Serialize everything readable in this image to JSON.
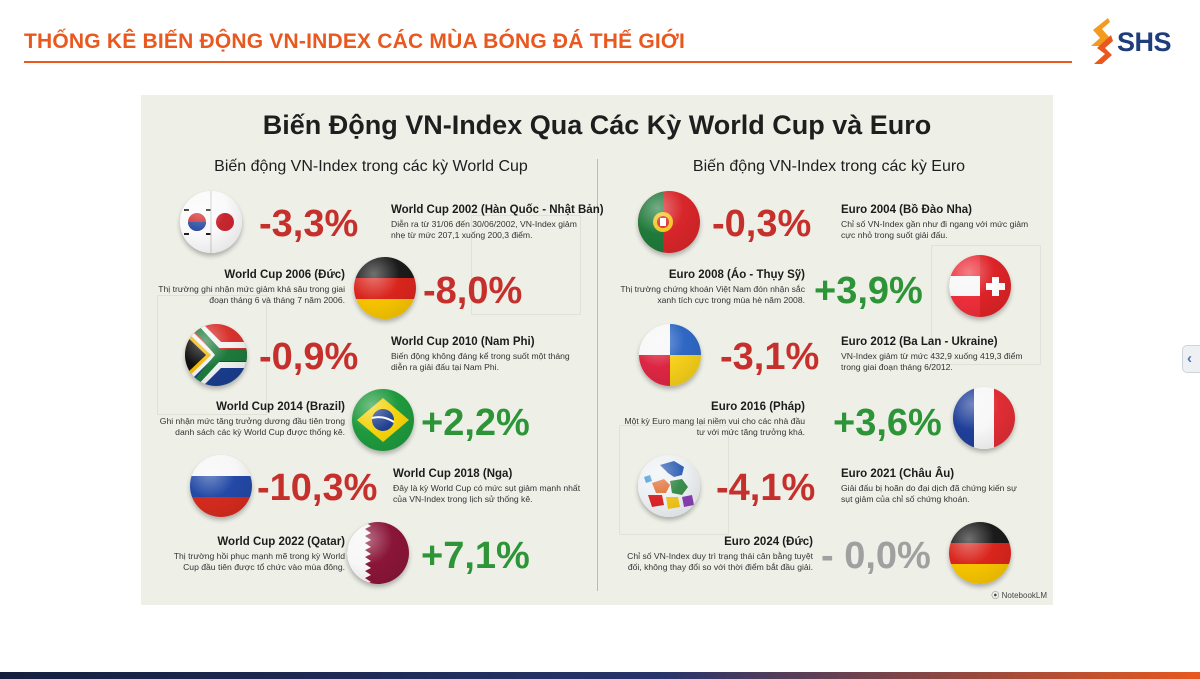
{
  "header": {
    "title": "THỐNG KÊ BIẾN ĐỘNG VN-INDEX CÁC MÙA BÓNG ĐÁ THẾ GIỚI",
    "logo_text": "SHS"
  },
  "colors": {
    "accent": "#e8581f",
    "brand": "#1f3d7a",
    "negative": "#c6302c",
    "positive": "#2e9438",
    "neutral": "#a0a0a0"
  },
  "infographic": {
    "title": "Biến Động VN-Index Qua Các Kỳ World Cup và Euro",
    "watermark": "NotebookLM",
    "world_cup": {
      "heading": "Biến động VN-Index trong các kỳ World Cup",
      "items": [
        {
          "flag": "south-korea-japan",
          "value": "-3,3%",
          "trend": "down",
          "title": "World Cup 2002 (Hàn Quốc - Nhật Bản)",
          "desc": "Diễn ra từ 31/06 đến 30/06/2002, VN-Index giảm nhẹ từ mức 207,1 xuống 200,3 điểm."
        },
        {
          "flag": "germany",
          "value": "-8,0%",
          "trend": "down",
          "title": "World Cup 2006 (Đức)",
          "desc": "Thị trường ghi nhận mức giảm khá sâu trong giai đoạn tháng 6 và tháng 7 năm 2006."
        },
        {
          "flag": "south-africa",
          "value": "-0,9%",
          "trend": "down",
          "title": "World Cup 2010 (Nam Phi)",
          "desc": "Biến động không đáng kể trong suốt một tháng diễn ra giải đấu tại Nam Phi."
        },
        {
          "flag": "brazil",
          "value": "+2,2%",
          "trend": "up",
          "title": "World Cup 2014 (Brazil)",
          "desc": "Ghi nhận mức tăng trưởng dương đầu tiên trong danh sách các kỳ World Cup được thống kê."
        },
        {
          "flag": "russia",
          "value": "-10,3%",
          "trend": "down",
          "title": "World Cup 2018 (Nga)",
          "desc": "Đây là kỳ World Cup có mức sụt giảm mạnh nhất của VN-Index trong lịch sử thống kê."
        },
        {
          "flag": "qatar",
          "value": "+7,1%",
          "trend": "up",
          "title": "World Cup 2022 (Qatar)",
          "desc": "Thị trường hồi phục mạnh mẽ trong kỳ World Cup đầu tiên được tổ chức vào mùa đông."
        }
      ]
    },
    "euro": {
      "heading": "Biến động VN-Index trong các kỳ Euro",
      "items": [
        {
          "flag": "portugal",
          "value": "-0,3%",
          "trend": "down",
          "title": "Euro 2004 (Bồ Đào Nha)",
          "desc": "Chỉ số VN-Index gần như đi ngang với mức giảm cực nhỏ trong suốt giải đấu."
        },
        {
          "flag": "austria-switzerland",
          "value": "+3,9%",
          "trend": "up",
          "title": "Euro 2008 (Áo - Thụy Sỹ)",
          "desc": "Thị trường chứng khoán Việt Nam đón nhận sắc xanh tích cực trong mùa hè năm 2008."
        },
        {
          "flag": "poland-ukraine",
          "value": "-3,1%",
          "trend": "down",
          "title": "Euro 2012 (Ba Lan - Ukraine)",
          "desc": "VN-Index giảm từ mức 432,9 xuống 419,3 điểm trong giai đoạn tháng 6/2012."
        },
        {
          "flag": "france",
          "value": "+3,6%",
          "trend": "up",
          "title": "Euro 2016 (Pháp)",
          "desc": "Một kỳ Euro mang lại niềm vui cho các nhà đầu tư với mức tăng trưởng khá."
        },
        {
          "flag": "europe-map",
          "value": "-4,1%",
          "trend": "down",
          "title": "Euro 2021 (Châu Âu)",
          "desc": "Giải đấu bị hoãn do đại dịch đã chứng kiến sự sụt giảm của chỉ số chứng khoán."
        },
        {
          "flag": "germany",
          "value": "- 0,0%",
          "trend": "flat",
          "title": "Euro 2024 (Đức)",
          "desc": "Chỉ số VN-Index duy trì trạng thái cân bằng tuyệt đối, không thay đổi so với thời điểm bắt đầu giải."
        }
      ]
    }
  }
}
